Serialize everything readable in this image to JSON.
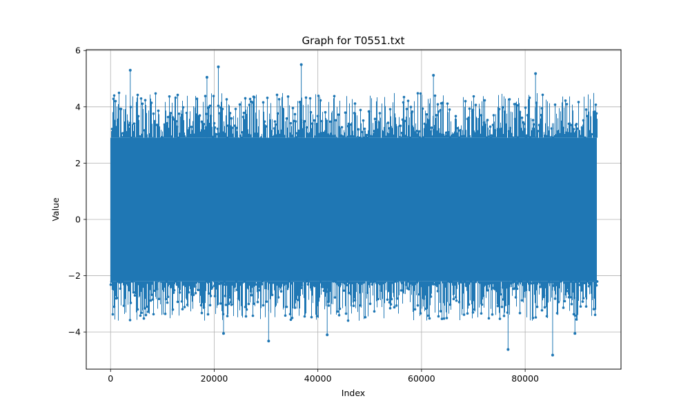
{
  "chart_data": {
    "type": "line",
    "title": "Graph for T0551.txt",
    "xlabel": "Index",
    "ylabel": "Value",
    "xlim": [
      -4690,
      98490
    ],
    "ylim": [
      -5.32,
      6.03
    ],
    "x_ticks": [
      0,
      20000,
      40000,
      60000,
      80000
    ],
    "x_tick_labels": [
      "0",
      "20000",
      "40000",
      "60000",
      "80000"
    ],
    "y_ticks": [
      -4,
      -2,
      0,
      2,
      4,
      6
    ],
    "y_tick_labels": [
      "−4",
      "−2",
      "0",
      "2",
      "4",
      "6"
    ],
    "grid": true,
    "legend": "none",
    "series": [
      {
        "marker": "circle",
        "color": "#1f77b4",
        "n_points": 93800,
        "x_range": [
          0,
          93800
        ],
        "dense_band": {
          "low": -2.2,
          "high": 2.9
        },
        "notable_points": [
          {
            "x": 3800,
            "y": 5.3
          },
          {
            "x": 20800,
            "y": 5.42
          },
          {
            "x": 36800,
            "y": 5.5
          },
          {
            "x": 62300,
            "y": 5.12
          },
          {
            "x": 82000,
            "y": 5.18
          },
          {
            "x": 18600,
            "y": 5.05
          },
          {
            "x": 30500,
            "y": -4.32
          },
          {
            "x": 76700,
            "y": -4.62
          },
          {
            "x": 85300,
            "y": -4.82
          },
          {
            "x": 21800,
            "y": -4.05
          },
          {
            "x": 41800,
            "y": -4.1
          },
          {
            "x": 89600,
            "y": -4.05
          }
        ]
      }
    ]
  },
  "colors": {
    "series": "#1f77b4",
    "grid": "#b0b0b0",
    "axes": "#000000"
  }
}
